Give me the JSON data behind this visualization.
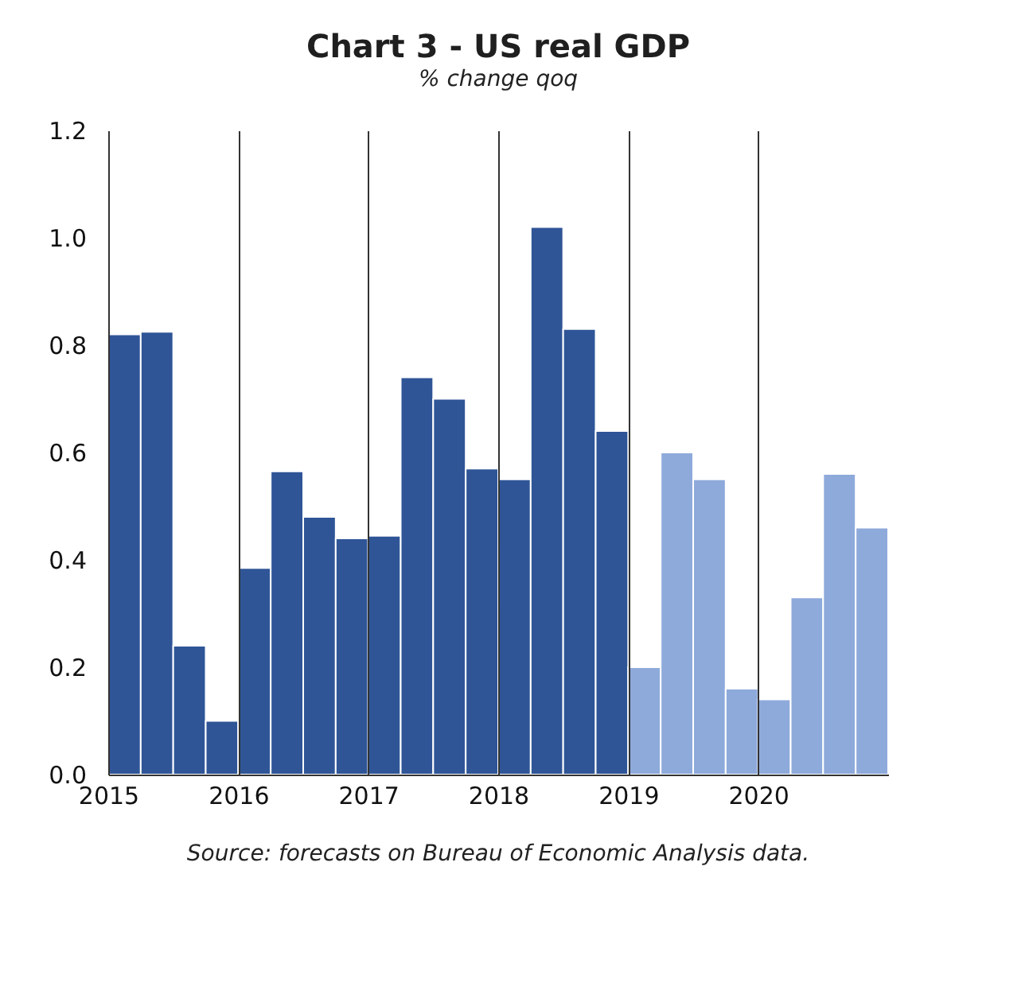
{
  "chart_data": {
    "type": "bar",
    "title": "Chart 3 - US real GDP",
    "subtitle": "% change qoq",
    "categories": [
      "2015",
      null,
      null,
      null,
      "2016",
      null,
      null,
      null,
      "2017",
      null,
      null,
      null,
      "2018",
      null,
      null,
      null,
      "2019",
      null,
      null,
      null,
      "2020",
      null,
      null,
      null
    ],
    "values": [
      0.82,
      0.825,
      0.24,
      0.1,
      0.385,
      0.565,
      0.48,
      0.44,
      0.445,
      0.74,
      0.7,
      0.57,
      0.55,
      1.02,
      0.83,
      0.64,
      0.2,
      0.6,
      0.55,
      0.16,
      0.14,
      0.33,
      0.56,
      0.46
    ],
    "colors": [
      "#2f5597",
      "#2f5597",
      "#2f5597",
      "#2f5597",
      "#2f5597",
      "#2f5597",
      "#2f5597",
      "#2f5597",
      "#2f5597",
      "#2f5597",
      "#2f5597",
      "#2f5597",
      "#2f5597",
      "#2f5597",
      "#2f5597",
      "#2f5597",
      "#8eaadb",
      "#8eaadb",
      "#8eaadb",
      "#8eaadb",
      "#8eaadb",
      "#8eaadb",
      "#8eaadb",
      "#8eaadb"
    ],
    "ylim": [
      0,
      1.2
    ],
    "yticks": [
      {
        "value": 0,
        "label": "0.0"
      },
      0.2,
      0.4,
      0.6,
      0.8,
      {
        "value": 1,
        "label": "1.0"
      },
      1.2
    ],
    "grid": "x",
    "annotations": [
      "Source: forecasts on Bureau of Economic Analysis data."
    ]
  }
}
